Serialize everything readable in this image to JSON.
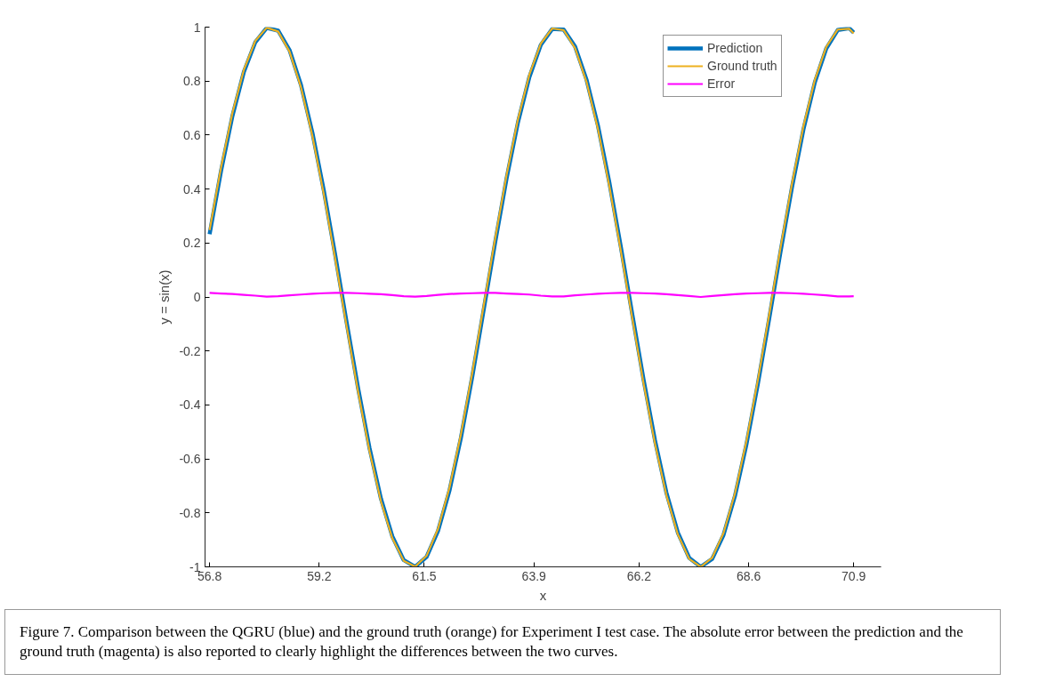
{
  "chart_data": {
    "type": "line",
    "xlabel": "x",
    "ylabel": "y = sin(x)",
    "x": [
      56.8,
      57.05,
      57.3,
      57.55,
      57.8,
      58.05,
      58.3,
      58.55,
      58.8,
      59.05,
      59.3,
      59.55,
      59.8,
      60.05,
      60.3,
      60.55,
      60.8,
      61.05,
      61.3,
      61.55,
      61.8,
      62.05,
      62.3,
      62.55,
      62.8,
      63.05,
      63.3,
      63.55,
      63.8,
      64.05,
      64.3,
      64.55,
      64.8,
      65.05,
      65.3,
      65.55,
      65.8,
      66.05,
      66.3,
      66.55,
      66.8,
      67.05,
      67.3,
      67.55,
      67.8,
      68.05,
      68.3,
      68.55,
      68.8,
      69.05,
      69.3,
      69.55,
      69.8,
      70.05,
      70.3,
      70.55,
      70.8,
      70.9
    ],
    "series": [
      {
        "name": "Prediction",
        "color": "#0072bd",
        "values": [
          0.233,
          0.467,
          0.671,
          0.834,
          0.944,
          0.997,
          0.987,
          0.915,
          0.786,
          0.609,
          0.395,
          0.155,
          -0.094,
          -0.337,
          -0.559,
          -0.747,
          -0.887,
          -0.975,
          -1.0,
          -0.963,
          -0.867,
          -0.718,
          -0.523,
          -0.295,
          -0.047,
          0.201,
          0.438,
          0.647,
          0.815,
          0.934,
          0.993,
          0.991,
          0.928,
          0.806,
          0.636,
          0.425,
          0.188,
          -0.061,
          -0.306,
          -0.531,
          -0.725,
          -0.873,
          -0.967,
          -1.0,
          -0.971,
          -0.882,
          -0.738,
          -0.548,
          -0.324,
          -0.08,
          0.169,
          0.407,
          0.621,
          0.796,
          0.921,
          0.989,
          0.996,
          0.98
        ]
      },
      {
        "name": "Ground truth",
        "color": "#edb120",
        "values": [
          0.248,
          0.48,
          0.682,
          0.842,
          0.949,
          0.998,
          0.984,
          0.909,
          0.777,
          0.597,
          0.381,
          0.14,
          -0.109,
          -0.351,
          -0.571,
          -0.757,
          -0.894,
          -0.978,
          -0.999,
          -0.959,
          -0.859,
          -0.707,
          -0.51,
          -0.281,
          -0.032,
          0.216,
          0.451,
          0.658,
          0.824,
          0.939,
          0.995,
          0.989,
          0.922,
          0.797,
          0.624,
          0.411,
          0.173,
          -0.076,
          -0.32,
          -0.544,
          -0.735,
          -0.88,
          -0.971,
          -1.0,
          -0.967,
          -0.875,
          -0.728,
          -0.535,
          -0.31,
          -0.065,
          0.184,
          0.421,
          0.633,
          0.805,
          0.927,
          0.991,
          0.994,
          0.977
        ]
      },
      {
        "name": "Error",
        "color": "#ff00ff",
        "values": [
          0.015,
          0.013,
          0.011,
          0.008,
          0.005,
          0.001,
          0.003,
          0.006,
          0.009,
          0.012,
          0.014,
          0.015,
          0.015,
          0.014,
          0.012,
          0.01,
          0.007,
          0.003,
          0.001,
          0.004,
          0.008,
          0.011,
          0.013,
          0.014,
          0.015,
          0.015,
          0.013,
          0.011,
          0.009,
          0.005,
          0.002,
          0.002,
          0.006,
          0.009,
          0.012,
          0.014,
          0.015,
          0.015,
          0.014,
          0.013,
          0.01,
          0.007,
          0.004,
          0.0,
          0.004,
          0.007,
          0.01,
          0.013,
          0.014,
          0.015,
          0.015,
          0.014,
          0.012,
          0.009,
          0.006,
          0.002,
          0.002,
          0.003
        ]
      }
    ],
    "xlim": [
      56.7,
      71.5
    ],
    "xticks": [
      56.8,
      59.2,
      61.5,
      63.9,
      66.2,
      68.6,
      70.9
    ],
    "ylim": [
      -1,
      1
    ],
    "yticks": [
      -1,
      -0.8,
      -0.6,
      -0.4,
      -0.2,
      0,
      0.2,
      0.4,
      0.6,
      0.8,
      1
    ],
    "grid": false,
    "legend": "top right",
    "line_style": "solid",
    "marker": "none",
    "annotations": [
      "Figure 7. Comparison between the QGRU (blue) and the ground truth (orange) for Experiment I test case. The absolute error between the prediction and the ground truth (magenta) is also reported to clearly highlight the differences between the two curves."
    ]
  }
}
